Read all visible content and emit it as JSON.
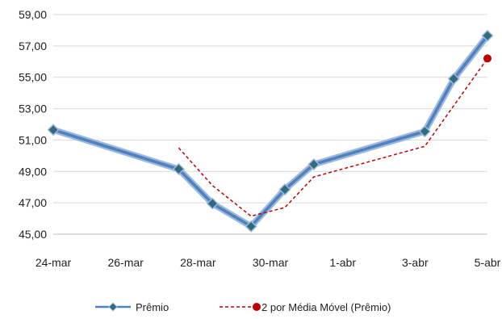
{
  "chart_data": {
    "type": "line",
    "title": "",
    "xlabel": "",
    "ylabel": "",
    "categories": [
      "24-mar",
      "26-mar",
      "28-mar",
      "30-mar",
      "1-abr",
      "3-abr",
      "5-abr"
    ],
    "ylim": [
      45,
      59
    ],
    "yticks": [
      "59,00",
      "57,00",
      "55,00",
      "53,00",
      "51,00",
      "49,00",
      "47,00",
      "45,00"
    ],
    "grid": true,
    "legend_position": "bottom",
    "series": [
      {
        "name": "Prêmio",
        "color": "#4f81bd",
        "marker": "diamond",
        "points": [
          {
            "x": 0,
            "y": 51.65
          },
          {
            "x": 2.6,
            "y": 49.15
          },
          {
            "x": 3.3,
            "y": 46.95
          },
          {
            "x": 4.1,
            "y": 45.5
          },
          {
            "x": 4.8,
            "y": 47.85
          },
          {
            "x": 5.4,
            "y": 49.45
          },
          {
            "x": 7.7,
            "y": 51.55
          },
          {
            "x": 8.3,
            "y": 54.9
          },
          {
            "x": 9.0,
            "y": 57.65
          }
        ]
      },
      {
        "name": "2 por Média Móvel (Prêmio)",
        "color": "#c00000",
        "style": "dashed",
        "points": [
          {
            "x": 2.6,
            "y": 50.5
          },
          {
            "x": 3.3,
            "y": 48.1
          },
          {
            "x": 4.1,
            "y": 46.15
          },
          {
            "x": 4.8,
            "y": 46.7
          },
          {
            "x": 5.4,
            "y": 48.65
          },
          {
            "x": 7.7,
            "y": 50.6
          },
          {
            "x": 9.0,
            "y": 56.2
          }
        ]
      }
    ]
  }
}
